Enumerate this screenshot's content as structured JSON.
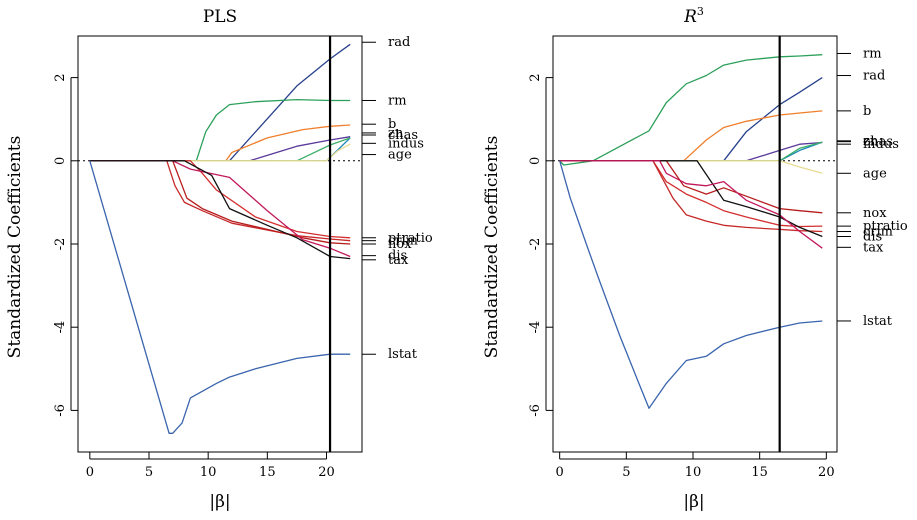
{
  "chart_data": [
    {
      "type": "line",
      "title": "PLS",
      "title_superscript": "",
      "xlabel": "|β|",
      "ylabel": "Standardized Coefficients",
      "xlim": [
        -1,
        23
      ],
      "ylim": [
        -7,
        3
      ],
      "xticks": [
        0,
        5,
        10,
        15,
        20
      ],
      "yticks": [
        -6,
        -4,
        -2,
        0,
        2
      ],
      "vline_x": 20.3,
      "zero_line": "dotted",
      "series": [
        {
          "name": "rad",
          "color": "#27408B",
          "label_y": 2.85,
          "points": [
            [
              0,
              0
            ],
            [
              11.8,
              0
            ],
            [
              17.5,
              1.8
            ],
            [
              20.3,
              2.45
            ],
            [
              22,
              2.8
            ]
          ]
        },
        {
          "name": "rm",
          "color": "#2CA05A",
          "label_y": 1.45,
          "points": [
            [
              0,
              0
            ],
            [
              9,
              0
            ],
            [
              9.8,
              0.7
            ],
            [
              10.7,
              1.1
            ],
            [
              11.8,
              1.35
            ],
            [
              14,
              1.42
            ],
            [
              17.5,
              1.47
            ],
            [
              20.3,
              1.45
            ],
            [
              22,
              1.45
            ]
          ]
        },
        {
          "name": "b",
          "color": "#EF7F2C",
          "label_y": 0.88,
          "points": [
            [
              0,
              0
            ],
            [
              11.5,
              0
            ],
            [
              12,
              0.2
            ],
            [
              15,
              0.55
            ],
            [
              18,
              0.75
            ],
            [
              20.3,
              0.83
            ],
            [
              22,
              0.86
            ]
          ]
        },
        {
          "name": "zn",
          "color": "#1E88B8",
          "label_y": 0.67,
          "points": [
            [
              0,
              0
            ],
            [
              20,
              0
            ],
            [
              22,
              0.55
            ]
          ]
        },
        {
          "name": "chas",
          "color": "#5A3A9A",
          "label_y": 0.62,
          "points": [
            [
              0,
              0
            ],
            [
              13.5,
              0
            ],
            [
              17.5,
              0.35
            ],
            [
              20.3,
              0.5
            ],
            [
              22,
              0.58
            ]
          ]
        },
        {
          "name": "indus",
          "color": "#3CAF6A",
          "label_y": 0.42,
          "points": [
            [
              0,
              0
            ],
            [
              17.5,
              0
            ],
            [
              20.3,
              0.38
            ],
            [
              22,
              0.55
            ]
          ]
        },
        {
          "name": "age",
          "color": "#E8DC92",
          "label_y": 0.15,
          "points": [
            [
              0,
              0
            ],
            [
              20,
              0
            ],
            [
              21,
              0.25
            ],
            [
              22,
              0.4
            ]
          ]
        },
        {
          "name": "ptratio",
          "color": "#D32F2F",
          "label_y": -1.85,
          "points": [
            [
              0,
              0
            ],
            [
              8.5,
              0
            ],
            [
              9.5,
              -0.3
            ],
            [
              10.7,
              -0.7
            ],
            [
              14,
              -1.35
            ],
            [
              17.5,
              -1.7
            ],
            [
              20.3,
              -1.82
            ],
            [
              22,
              -1.85
            ]
          ]
        },
        {
          "name": "crim",
          "color": "#C62828",
          "label_y": -1.92,
          "points": [
            [
              0,
              0
            ],
            [
              6.5,
              0
            ],
            [
              7.2,
              -0.6
            ],
            [
              8,
              -1
            ],
            [
              9.5,
              -1.2
            ],
            [
              12,
              -1.5
            ],
            [
              17.5,
              -1.8
            ],
            [
              20.3,
              -1.88
            ],
            [
              22,
              -1.92
            ]
          ]
        },
        {
          "name": "nox",
          "color": "#B71C1C",
          "label_y": -2.0,
          "points": [
            [
              0,
              0
            ],
            [
              7,
              0
            ],
            [
              8.2,
              -0.9
            ],
            [
              9.5,
              -1.15
            ],
            [
              12,
              -1.45
            ],
            [
              15,
              -1.65
            ],
            [
              18,
              -1.85
            ],
            [
              20.3,
              -1.97
            ],
            [
              22,
              -2.0
            ]
          ]
        },
        {
          "name": "dis",
          "color": "#C2185B",
          "label_y": -2.28,
          "points": [
            [
              0,
              0
            ],
            [
              7,
              0
            ],
            [
              8.5,
              -0.2
            ],
            [
              11.8,
              -0.4
            ],
            [
              15,
              -1.2
            ],
            [
              18,
              -1.9
            ],
            [
              20.3,
              -2.1
            ],
            [
              22,
              -2.3
            ]
          ]
        },
        {
          "name": "tax",
          "color": "#111111",
          "label_y": -2.38,
          "points": [
            [
              0,
              0
            ],
            [
              8,
              0
            ],
            [
              10.3,
              -0.35
            ],
            [
              11.8,
              -1.15
            ],
            [
              15,
              -1.55
            ],
            [
              17.5,
              -1.85
            ],
            [
              20.3,
              -2.3
            ],
            [
              22,
              -2.35
            ]
          ]
        },
        {
          "name": "lstat",
          "color": "#3A64AD",
          "label_y": -4.65,
          "points": [
            [
              0,
              0
            ],
            [
              6.7,
              -6.55
            ],
            [
              7,
              -6.55
            ],
            [
              7.8,
              -6.3
            ],
            [
              8.5,
              -5.7
            ],
            [
              10.7,
              -5.35
            ],
            [
              11.8,
              -5.2
            ],
            [
              14,
              -5.0
            ],
            [
              17.5,
              -4.75
            ],
            [
              20.3,
              -4.65
            ],
            [
              21.5,
              -4.65
            ],
            [
              22,
              -4.65
            ]
          ]
        }
      ]
    },
    {
      "type": "line",
      "title": "R",
      "title_superscript": "3",
      "xlabel": "|β|",
      "ylabel": "Standardized Coefficients",
      "xlim": [
        -0.5,
        20.8
      ],
      "ylim": [
        -7,
        3
      ],
      "xticks": [
        0,
        5,
        10,
        15,
        20
      ],
      "yticks": [
        -6,
        -4,
        -2,
        0,
        2
      ],
      "vline_x": 16.5,
      "zero_line": "dotted",
      "series": [
        {
          "name": "rm",
          "color": "#2CA05A",
          "label_y": 2.58,
          "points": [
            [
              0,
              0
            ],
            [
              0.3,
              -0.1
            ],
            [
              2.5,
              0
            ],
            [
              6.7,
              0.72
            ],
            [
              8,
              1.4
            ],
            [
              9.5,
              1.85
            ],
            [
              11,
              2.05
            ],
            [
              12.3,
              2.3
            ],
            [
              14,
              2.42
            ],
            [
              16.5,
              2.5
            ],
            [
              18,
              2.52
            ],
            [
              19.7,
              2.55
            ]
          ]
        },
        {
          "name": "rad",
          "color": "#27408B",
          "label_y": 2.05,
          "points": [
            [
              0,
              0
            ],
            [
              12.3,
              0
            ],
            [
              14,
              0.7
            ],
            [
              16.5,
              1.35
            ],
            [
              18,
              1.65
            ],
            [
              19.7,
              2.0
            ]
          ]
        },
        {
          "name": "b",
          "color": "#EF7F2C",
          "label_y": 1.2,
          "points": [
            [
              0,
              0
            ],
            [
              9.3,
              0
            ],
            [
              11,
              0.5
            ],
            [
              12.3,
              0.8
            ],
            [
              14,
              0.95
            ],
            [
              16.5,
              1.1
            ],
            [
              18,
              1.15
            ],
            [
              19.7,
              1.2
            ]
          ]
        },
        {
          "name": "zn",
          "color": "#1E88B8",
          "label_y": 0.48,
          "points": [
            [
              0,
              0
            ],
            [
              16.5,
              0
            ],
            [
              18,
              0.25
            ],
            [
              19.7,
              0.45
            ]
          ]
        },
        {
          "name": "chas",
          "color": "#5A3A9A",
          "label_y": 0.46,
          "points": [
            [
              0,
              0
            ],
            [
              14,
              0
            ],
            [
              16.5,
              0.25
            ],
            [
              18,
              0.4
            ],
            [
              19.7,
              0.44
            ]
          ]
        },
        {
          "name": "indus",
          "color": "#3CAF6A",
          "label_y": 0.4,
          "points": [
            [
              0,
              0
            ],
            [
              16.5,
              0
            ],
            [
              18,
              0.3
            ],
            [
              19.7,
              0.45
            ]
          ]
        },
        {
          "name": "age",
          "color": "#E8DC92",
          "label_y": -0.3,
          "points": [
            [
              0,
              0
            ],
            [
              16.5,
              0
            ],
            [
              18,
              -0.15
            ],
            [
              19.7,
              -0.3
            ]
          ]
        },
        {
          "name": "nox",
          "color": "#B71C1C",
          "label_y": -1.25,
          "points": [
            [
              0,
              0
            ],
            [
              8,
              0
            ],
            [
              9.3,
              -0.6
            ],
            [
              11,
              -0.8
            ],
            [
              12.3,
              -0.65
            ],
            [
              14,
              -0.85
            ],
            [
              16.5,
              -1.15
            ],
            [
              18,
              -1.2
            ],
            [
              19.7,
              -1.25
            ]
          ]
        },
        {
          "name": "ptratio",
          "color": "#D32F2F",
          "label_y": -1.57,
          "points": [
            [
              0,
              0
            ],
            [
              7,
              0
            ],
            [
              8,
              -0.5
            ],
            [
              9.5,
              -0.8
            ],
            [
              11,
              -1.0
            ],
            [
              12.3,
              -1.2
            ],
            [
              14,
              -1.35
            ],
            [
              16.5,
              -1.55
            ],
            [
              18,
              -1.58
            ],
            [
              19.7,
              -1.57
            ]
          ]
        },
        {
          "name": "crim",
          "color": "#C62828",
          "label_y": -1.7,
          "points": [
            [
              0,
              0
            ],
            [
              7,
              0
            ],
            [
              8.5,
              -0.9
            ],
            [
              9.5,
              -1.3
            ],
            [
              11,
              -1.45
            ],
            [
              12.3,
              -1.55
            ],
            [
              14,
              -1.6
            ],
            [
              16.5,
              -1.65
            ],
            [
              18,
              -1.68
            ],
            [
              19.7,
              -1.7
            ]
          ]
        },
        {
          "name": "dis",
          "color": "#111111",
          "label_y": -1.82,
          "points": [
            [
              0,
              0
            ],
            [
              10.3,
              0
            ],
            [
              12.3,
              -0.95
            ],
            [
              14,
              -1.1
            ],
            [
              16.5,
              -1.35
            ],
            [
              18,
              -1.6
            ],
            [
              19.7,
              -1.82
            ]
          ]
        },
        {
          "name": "tax",
          "color": "#C2185B",
          "label_y": -2.08,
          "points": [
            [
              0,
              0
            ],
            [
              7.5,
              0
            ],
            [
              8,
              -0.3
            ],
            [
              9.5,
              -0.55
            ],
            [
              11,
              -0.6
            ],
            [
              12.3,
              -0.5
            ],
            [
              14,
              -0.95
            ],
            [
              16.5,
              -1.3
            ],
            [
              18,
              -1.7
            ],
            [
              19.7,
              -2.1
            ]
          ]
        },
        {
          "name": "lstat",
          "color": "#3A64AD",
          "label_y": -3.85,
          "points": [
            [
              0,
              0
            ],
            [
              0.8,
              -0.9
            ],
            [
              2,
              -2.0
            ],
            [
              3,
              -2.9
            ],
            [
              4.5,
              -4.2
            ],
            [
              6,
              -5.4
            ],
            [
              6.7,
              -5.95
            ],
            [
              8,
              -5.35
            ],
            [
              9.5,
              -4.8
            ],
            [
              11,
              -4.7
            ],
            [
              12.3,
              -4.4
            ],
            [
              14,
              -4.2
            ],
            [
              16.5,
              -4.0
            ],
            [
              18,
              -3.9
            ],
            [
              19.7,
              -3.85
            ]
          ]
        }
      ]
    }
  ]
}
